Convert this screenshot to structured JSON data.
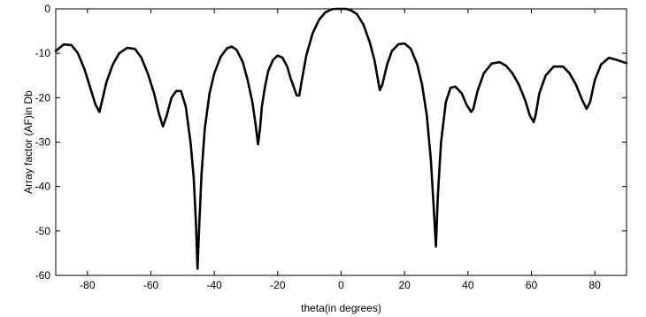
{
  "chart_data": {
    "type": "line",
    "title": "",
    "xlabel": "theta(in degrees)",
    "ylabel": "Array factor (AF)in Db",
    "xlim": [
      -90,
      90
    ],
    "ylim": [
      -60,
      0
    ],
    "xticks": [
      -80,
      -60,
      -40,
      -20,
      0,
      20,
      40,
      60,
      80
    ],
    "yticks": [
      0,
      -10,
      -20,
      -30,
      -40,
      -50,
      -60
    ],
    "grid": false,
    "line_color": "#000000",
    "series": [
      {
        "x": [
          -90,
          -87.5,
          -85,
          -83,
          -81,
          -79,
          -77.5,
          -76.2,
          -75.5,
          -74,
          -72,
          -70,
          -67.5,
          -65,
          -63,
          -61,
          -59,
          -57.5,
          -56.2,
          -55,
          -53.5,
          -52,
          -50.5,
          -49,
          -47.5,
          -46.5,
          -45.8,
          -45.3,
          -44.7,
          -44,
          -43,
          -41.5,
          -40,
          -38,
          -36,
          -34.5,
          -33,
          -31,
          -29.5,
          -28,
          -27,
          -26.2,
          -25.6,
          -25,
          -24,
          -23,
          -21.5,
          -20,
          -18.5,
          -17,
          -16,
          -15,
          -14,
          -13.2,
          -12.5,
          -11,
          -9,
          -7,
          -5,
          -3,
          -1.5,
          0,
          1.5,
          3,
          5,
          7,
          9,
          10.5,
          11.5,
          12.2,
          13,
          14.5,
          16,
          18,
          20,
          22,
          24,
          25.5,
          27,
          28.3,
          29.3,
          29.9,
          30.5,
          31.5,
          33,
          34.5,
          36,
          38,
          39.5,
          41,
          41.7,
          43,
          45,
          47.5,
          50,
          52,
          54,
          56,
          58,
          59.5,
          60.7,
          61.3,
          62.5,
          64.5,
          67,
          70,
          72,
          74,
          76,
          77.4,
          78.5,
          80,
          82,
          84.5,
          87,
          89,
          90
        ],
        "y": [
          -9.5,
          -8.0,
          -8.2,
          -10.0,
          -13.5,
          -18.0,
          -21.5,
          -23.2,
          -21.0,
          -16.5,
          -12.5,
          -10.0,
          -8.8,
          -9.0,
          -11.0,
          -14.5,
          -19.0,
          -23.5,
          -26.5,
          -24.0,
          -20.0,
          -18.5,
          -18.5,
          -22.0,
          -30.0,
          -38.0,
          -48.0,
          -58.5,
          -48.0,
          -37.0,
          -27.0,
          -19.0,
          -14.5,
          -10.8,
          -8.9,
          -8.5,
          -9.2,
          -12.0,
          -16.0,
          -21.0,
          -26.0,
          -30.5,
          -27.0,
          -22.0,
          -17.5,
          -14.0,
          -11.5,
          -10.5,
          -11.0,
          -13.0,
          -15.5,
          -17.5,
          -19.5,
          -19.5,
          -16.5,
          -10.5,
          -5.5,
          -2.5,
          -0.8,
          -0.1,
          0.0,
          0.0,
          0.0,
          -0.3,
          -1.2,
          -3.5,
          -7.5,
          -11.5,
          -15.5,
          -18.3,
          -17.0,
          -12.5,
          -9.5,
          -8.0,
          -7.8,
          -9.0,
          -12.5,
          -17.0,
          -24.0,
          -34.0,
          -46.0,
          -53.5,
          -42.0,
          -30.0,
          -21.0,
          -17.8,
          -17.5,
          -19.0,
          -21.5,
          -23.2,
          -22.5,
          -18.5,
          -14.5,
          -12.3,
          -12.0,
          -12.8,
          -14.5,
          -17.0,
          -20.5,
          -24.0,
          -25.5,
          -24.0,
          -19.0,
          -15.0,
          -13.0,
          -13.0,
          -14.5,
          -17.0,
          -20.5,
          -22.5,
          -21.0,
          -16.0,
          -12.5,
          -11.0,
          -11.5,
          -12.0,
          -12.2
        ]
      }
    ]
  }
}
